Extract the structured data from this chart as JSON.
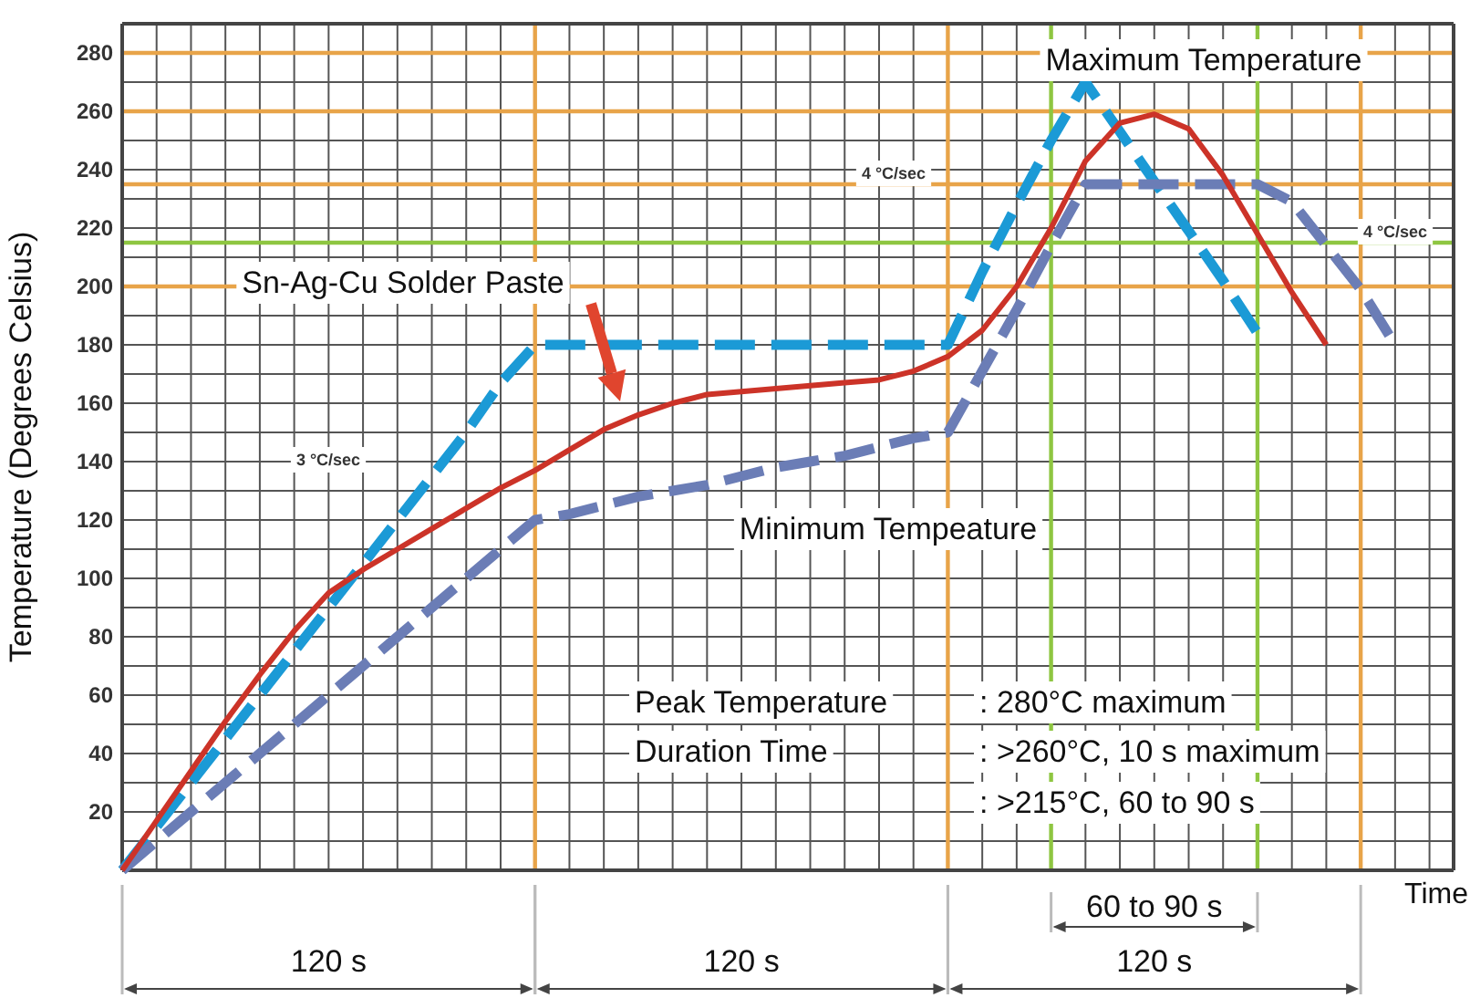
{
  "chart_data": {
    "type": "line",
    "ylabel": "Temperature (Degrees Celsius)",
    "xlabel": "Time",
    "tick_labels": "y",
    "grid": true,
    "categories": [
      null,
      null,
      null,
      null,
      null,
      null,
      null,
      null,
      null,
      null,
      null,
      null,
      null,
      null,
      null,
      null,
      null,
      null,
      null,
      null,
      null,
      null,
      null,
      null,
      null,
      null,
      null,
      null,
      null,
      null,
      null,
      null,
      null,
      null,
      null,
      null,
      null,
      null,
      null
    ],
    "ylim": [
      0,
      290
    ],
    "yticks": [
      {
        "value": 0,
        "label": null
      },
      {
        "value": 10,
        "label": null
      },
      20,
      {
        "value": 30,
        "label": null
      },
      40,
      {
        "value": 50,
        "label": null
      },
      60,
      {
        "value": 70,
        "label": null
      },
      80,
      {
        "value": 90,
        "label": null
      },
      100,
      {
        "value": 110,
        "label": null
      },
      120,
      {
        "value": 130,
        "label": null
      },
      140,
      {
        "value": 150,
        "label": null
      },
      160,
      {
        "value": 170,
        "label": null
      },
      180,
      {
        "value": 190,
        "label": null
      },
      200,
      {
        "value": 210,
        "label": null
      },
      220,
      {
        "value": 230,
        "label": null
      },
      240,
      {
        "value": 250,
        "label": null
      },
      260,
      {
        "value": 270,
        "label": null
      },
      280
    ],
    "series": [
      {
        "color": "#1b9ad6",
        "line_style": "dashed",
        "values": [
          0,
          15,
          30,
          45,
          60,
          75,
          90,
          105,
          120,
          135,
          150,
          167,
          180,
          180,
          180,
          180,
          180,
          180,
          180,
          180,
          180,
          180,
          180,
          180,
          180,
          205,
          228,
          250,
          270,
          253,
          236,
          219,
          202,
          184,
          null,
          null,
          null,
          null,
          null
        ]
      },
      {
        "color": "#6b7db6",
        "line_style": "dashed",
        "values": [
          0,
          10,
          20,
          30,
          40,
          50,
          60,
          70,
          80,
          90,
          100,
          110,
          120,
          122,
          125,
          128,
          130,
          132,
          135,
          138,
          140,
          142,
          145,
          148,
          150,
          171,
          192,
          214,
          235,
          235,
          235,
          235,
          235,
          235,
          229,
          214,
          199,
          180,
          null
        ]
      },
      {
        "color": "#cc3328",
        "line_style": "solid",
        "values": [
          0,
          17,
          34,
          51,
          67,
          82,
          95,
          103,
          110,
          117,
          124,
          131,
          137,
          144,
          151,
          156,
          160,
          163,
          164,
          165,
          166,
          167,
          168,
          171,
          176,
          185,
          200,
          220,
          243,
          256,
          259,
          254,
          238,
          218,
          198,
          180,
          null,
          null,
          null
        ]
      }
    ],
    "ref_lines": [
      {
        "axis": "y",
        "value": 235,
        "color": "#e8a449"
      },
      {
        "axis": "y",
        "value": 215,
        "color": "#8ec641"
      }
    ],
    "annotations": [
      "Sn-Ag-Cu Solder Paste",
      "Maximum Temperature",
      "Minimum Tempeature",
      "3 °C/sec",
      "4 °C/sec",
      "4 °C/sec",
      "Peak Temperature",
      ": 280°C maximum",
      "Duration Time",
      ": >260°C, 10 s maximum",
      ": >215°C, 60 to 90 s",
      "120 s",
      "120 s",
      "120 s",
      "60 to 90 s"
    ]
  }
}
